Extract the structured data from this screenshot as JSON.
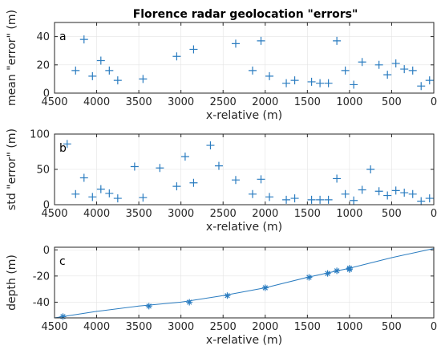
{
  "figure": {
    "title": "Florence radar geolocation \"errors\""
  },
  "chart_data": [
    {
      "panel": "a",
      "type": "scatter",
      "marker": "+",
      "color": "#2a7cc0",
      "xlabel": "x-relative (m)",
      "ylabel": "mean \"error\" (m)",
      "xlim": [
        4500,
        0
      ],
      "ylim": [
        0,
        50
      ],
      "x_reversed": true,
      "xticks": [
        4500,
        4000,
        3500,
        3000,
        2500,
        2000,
        1500,
        1000,
        500,
        0
      ],
      "yticks": [
        0,
        20,
        40
      ],
      "grid": true,
      "x": [
        4250,
        4150,
        4050,
        3950,
        3850,
        3750,
        3450,
        3050,
        2850,
        2350,
        2150,
        2050,
        1950,
        1750,
        1650,
        1450,
        1350,
        1250,
        1150,
        1050,
        950,
        850,
        650,
        550,
        450,
        350,
        250,
        150,
        50
      ],
      "y": [
        16,
        38,
        12,
        23,
        16,
        9,
        10,
        26,
        31,
        35,
        16,
        37,
        12,
        7,
        9,
        8,
        7,
        7,
        37,
        16,
        6,
        22,
        20,
        13,
        21,
        17,
        16,
        5,
        9
      ]
    },
    {
      "panel": "b",
      "type": "scatter",
      "marker": "+",
      "color": "#2a7cc0",
      "xlabel": "x-relative (m)",
      "ylabel": "std \"error\" (m)",
      "xlim": [
        4500,
        0
      ],
      "ylim": [
        0,
        100
      ],
      "x_reversed": true,
      "xticks": [
        4500,
        4000,
        3500,
        3000,
        2500,
        2000,
        1500,
        1000,
        500,
        0
      ],
      "yticks": [
        0,
        50,
        100
      ],
      "grid": true,
      "x": [
        4350,
        4250,
        4150,
        4050,
        3950,
        3850,
        3750,
        3550,
        3450,
        3250,
        3050,
        2950,
        2850,
        2650,
        2550,
        2350,
        2150,
        2050,
        1950,
        1750,
        1650,
        1450,
        1350,
        1250,
        1150,
        1050,
        950,
        850,
        750,
        650,
        550,
        450,
        350,
        250,
        150,
        50
      ],
      "y": [
        86,
        15,
        38,
        11,
        22,
        16,
        9,
        54,
        10,
        52,
        26,
        68,
        31,
        84,
        55,
        35,
        15,
        36,
        11,
        7,
        9,
        7,
        7,
        7,
        37,
        15,
        6,
        21,
        50,
        19,
        13,
        20,
        17,
        15,
        5,
        9
      ]
    },
    {
      "panel": "c",
      "type": "line",
      "marker": "*",
      "color": "#2a7cc0",
      "xlabel": "x-relative (m)",
      "ylabel": "depth (m)",
      "xlim": [
        4500,
        0
      ],
      "ylim": [
        -52,
        2
      ],
      "x_reversed": true,
      "xticks": [
        4500,
        4000,
        3500,
        3000,
        2500,
        2000,
        1500,
        1000,
        500,
        0
      ],
      "yticks": [
        0,
        -20,
        -40
      ],
      "grid": true,
      "line_x": [
        4500,
        4400,
        4000,
        3500,
        3000,
        2500,
        2000,
        1500,
        1000,
        500,
        0
      ],
      "line_y": [
        -52,
        -51,
        -47,
        -43,
        -40,
        -35,
        -29,
        -21,
        -14,
        -6,
        1
      ],
      "marker_x": [
        4400,
        3380,
        2900,
        2450,
        2000,
        1480,
        1260,
        1150,
        1000,
        1000
      ],
      "marker_y": [
        -51,
        -43,
        -40,
        -35,
        -29,
        -21,
        -18,
        -16,
        -14,
        -15
      ]
    }
  ]
}
